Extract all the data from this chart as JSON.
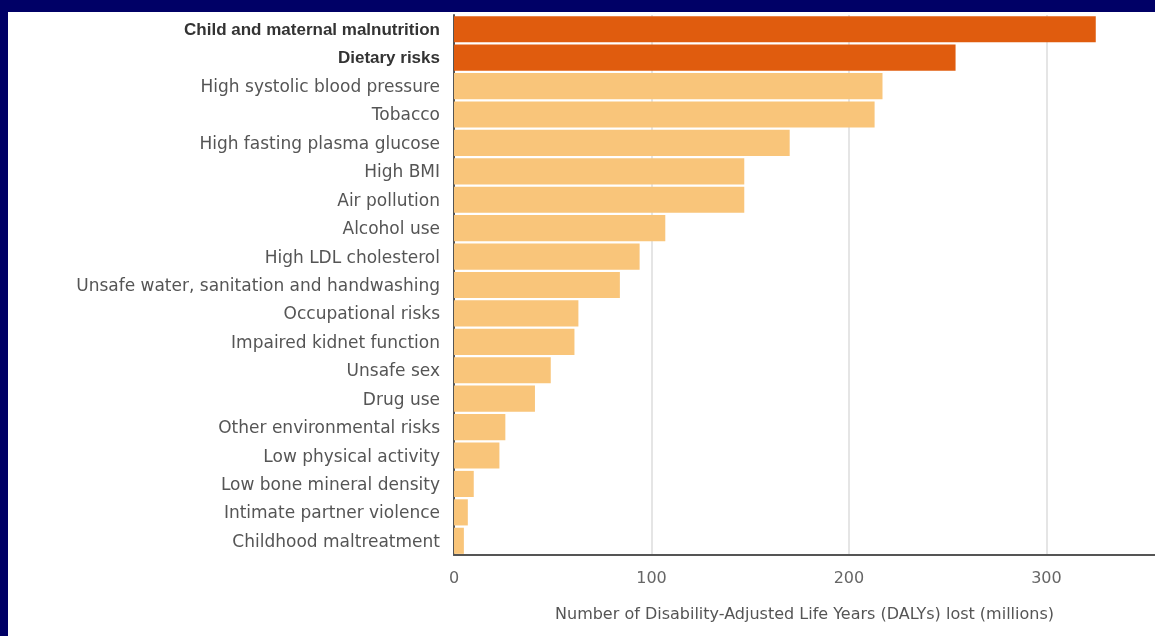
{
  "chart_data": {
    "type": "bar",
    "orientation": "horizontal",
    "categories": [
      "Child and maternal malnutrition",
      "Dietary risks",
      "High systolic blood pressure",
      "Tobacco",
      "High fasting plasma glucose",
      "High BMI",
      "Air pollution",
      "Alcohol use",
      "High LDL cholesterol",
      "Unsafe water, sanitation and handwashing",
      "Occupational risks",
      "Impaired kidnet function",
      "Unsafe sex",
      "Drug use",
      "Other environmental risks",
      "Low physical activity",
      "Low bone mineral density",
      "Intimate partner violence",
      "Childhood maltreatment"
    ],
    "values": [
      325,
      254,
      217,
      213,
      170,
      147,
      147,
      107,
      94,
      84,
      63,
      61,
      49,
      41,
      26,
      23,
      10,
      7,
      5
    ],
    "colors": [
      "#e05c0e",
      "#e05c0e",
      "#f9c57a",
      "#f9c57a",
      "#f9c57a",
      "#f9c57a",
      "#f9c57a",
      "#f9c57a",
      "#f9c57a",
      "#f9c57a",
      "#f9c57a",
      "#f9c57a",
      "#f9c57a",
      "#f9c57a",
      "#f9c57a",
      "#f9c57a",
      "#f9c57a",
      "#f9c57a",
      "#f9c57a"
    ],
    "xlabel": "Number of Disability-Adjusted Life Years (DALYs) lost (millions)",
    "xlim": [
      0,
      355
    ],
    "xticks": [
      0,
      100,
      200,
      300
    ],
    "grid": "x"
  }
}
